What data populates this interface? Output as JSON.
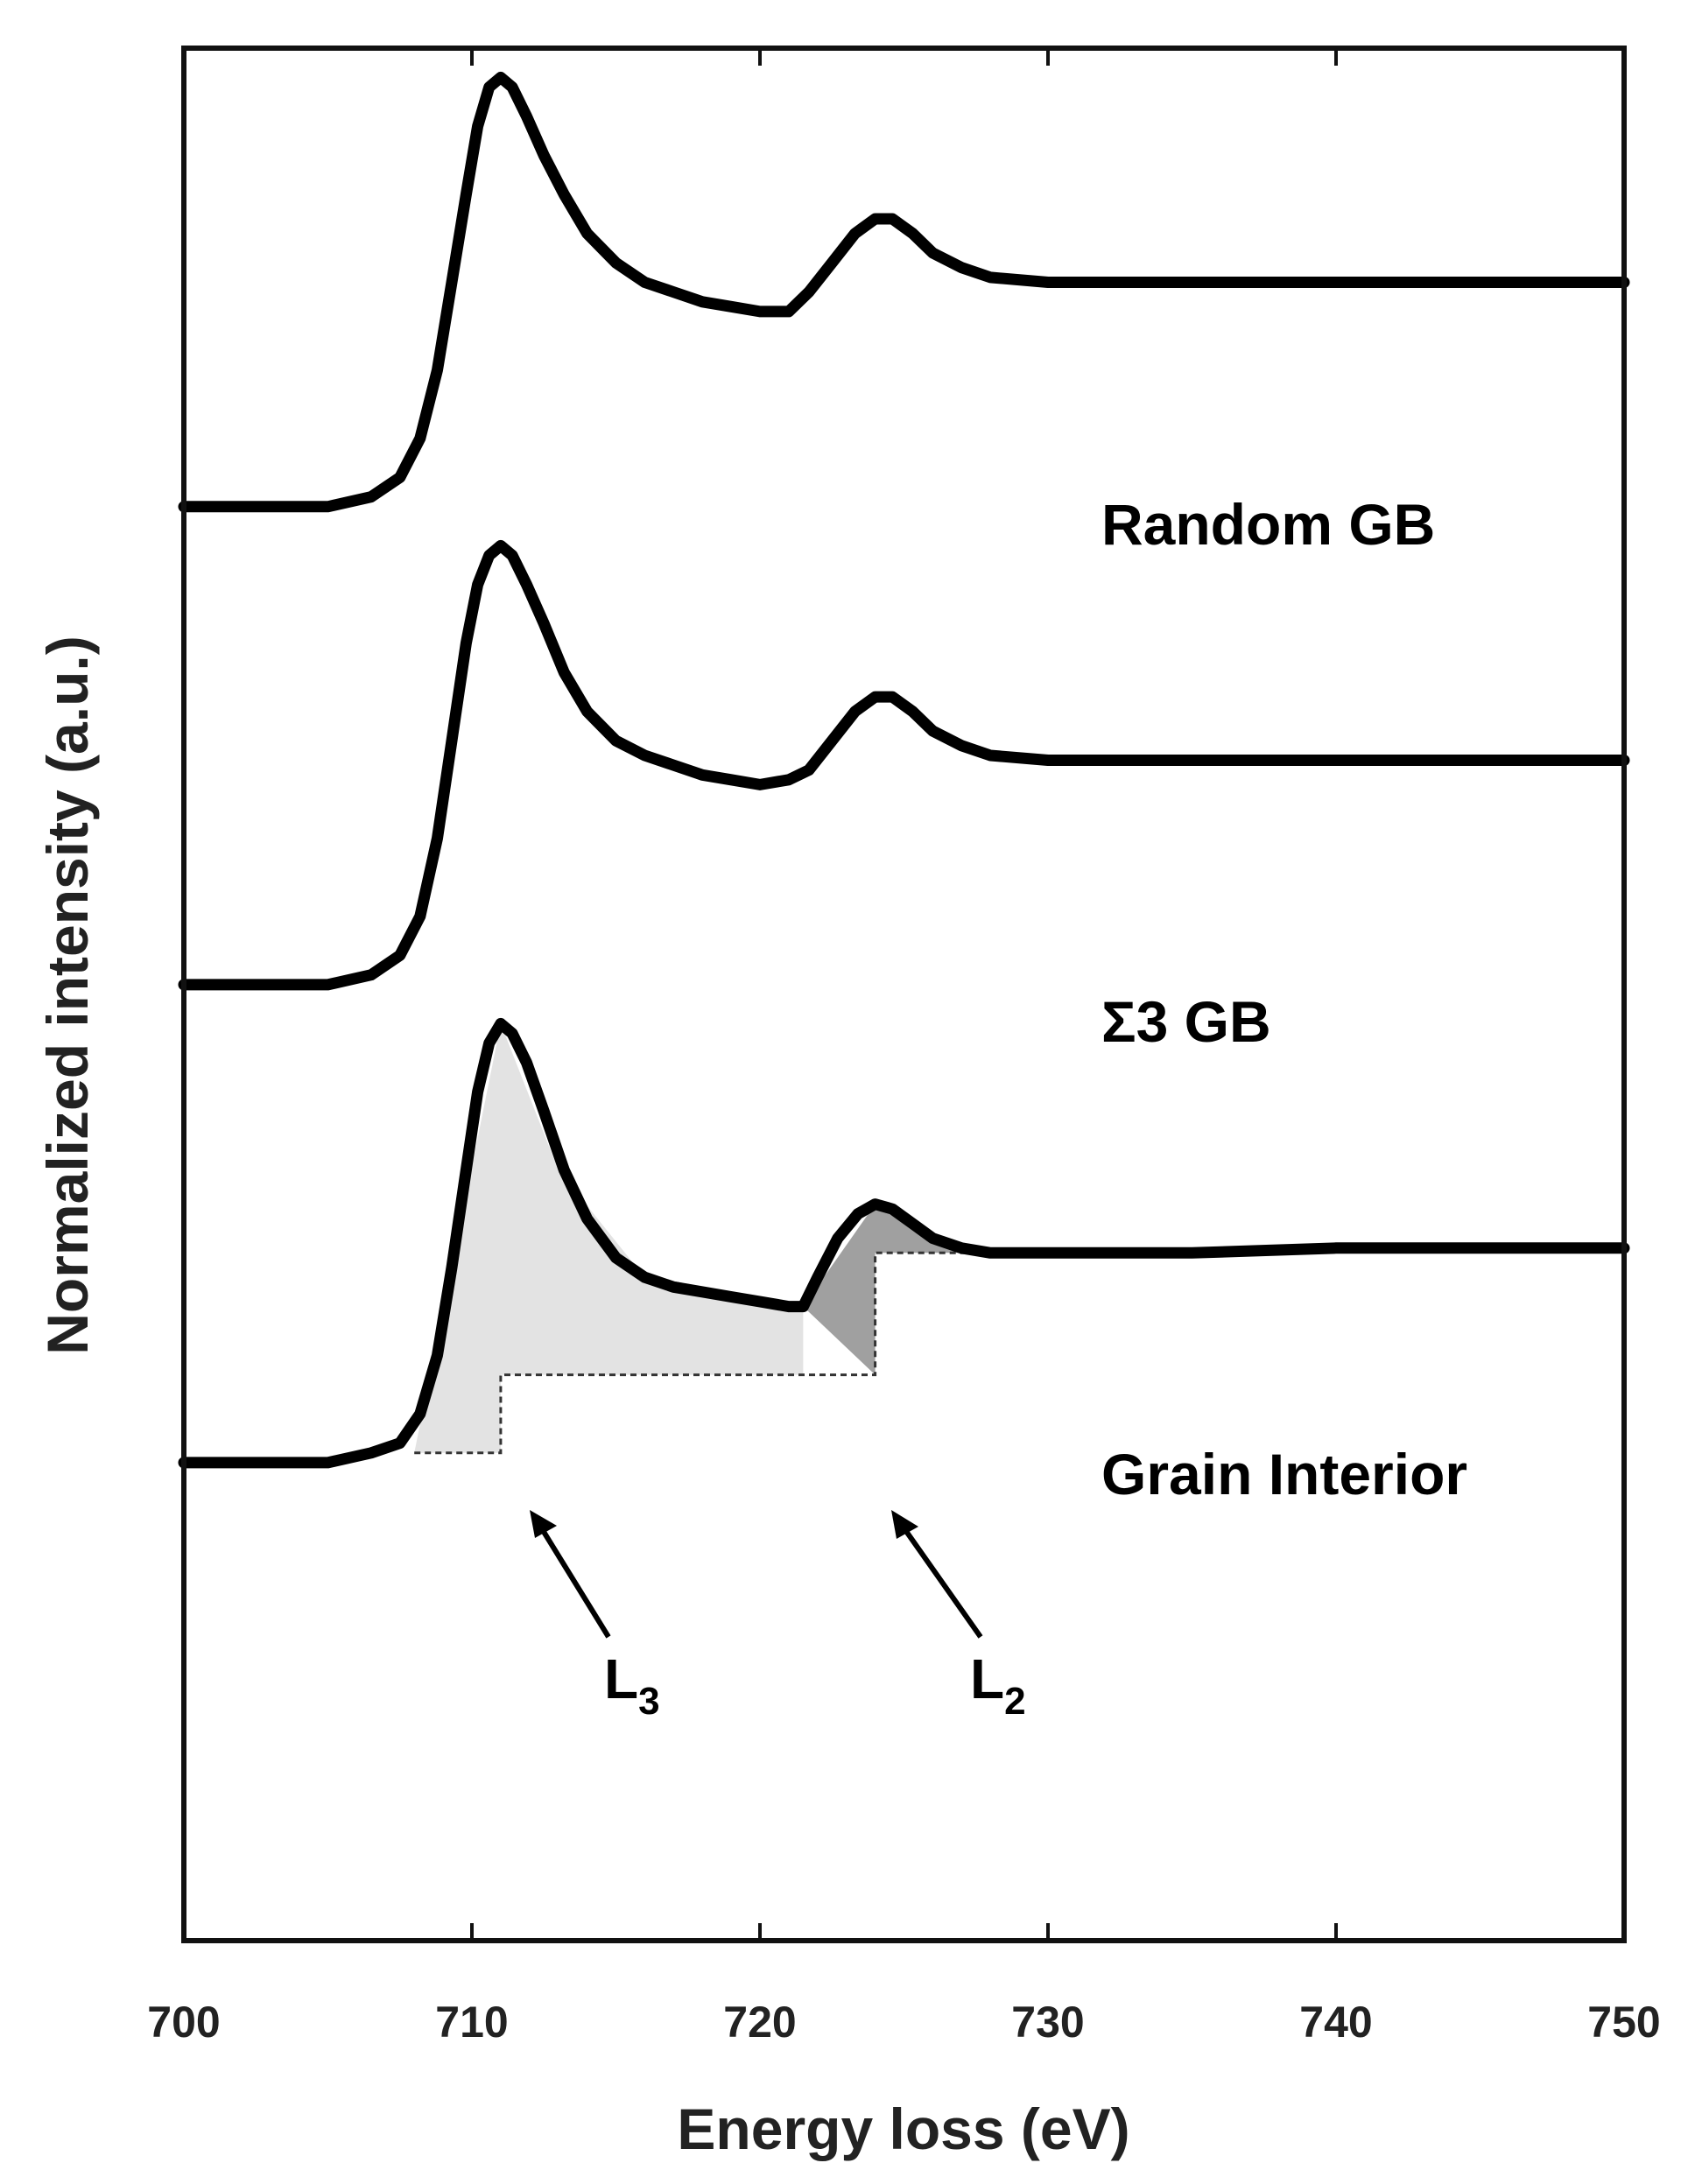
{
  "chart_data": {
    "type": "line",
    "title": "",
    "xlabel": "Energy loss (eV)",
    "ylabel": "Normalized intensity (a.u.)",
    "xlim": [
      700,
      750
    ],
    "x_ticks": [
      "700",
      "710",
      "720",
      "730",
      "740",
      "750"
    ],
    "y_ticks_shown": false,
    "grid": false,
    "legend": "none",
    "series": [
      {
        "name": "Random GB",
        "points": [
          [
            700,
            0.49
          ],
          [
            703,
            0.49
          ],
          [
            705,
            0.49
          ],
          [
            706.5,
            0.5
          ],
          [
            707.5,
            0.52
          ],
          [
            708.2,
            0.56
          ],
          [
            708.8,
            0.63
          ],
          [
            709.3,
            0.72
          ],
          [
            709.8,
            0.81
          ],
          [
            710.2,
            0.88
          ],
          [
            710.6,
            0.92
          ],
          [
            711.0,
            0.93
          ],
          [
            711.4,
            0.92
          ],
          [
            711.9,
            0.89
          ],
          [
            712.5,
            0.85
          ],
          [
            713.2,
            0.81
          ],
          [
            714,
            0.77
          ],
          [
            715,
            0.74
          ],
          [
            716,
            0.72
          ],
          [
            717,
            0.71
          ],
          [
            718,
            0.7
          ],
          [
            719,
            0.695
          ],
          [
            720,
            0.69
          ],
          [
            721,
            0.69
          ],
          [
            721.7,
            0.71
          ],
          [
            722.5,
            0.74
          ],
          [
            723.3,
            0.77
          ],
          [
            724,
            0.785
          ],
          [
            724.6,
            0.785
          ],
          [
            725.3,
            0.77
          ],
          [
            726,
            0.75
          ],
          [
            727,
            0.735
          ],
          [
            728,
            0.725
          ],
          [
            730,
            0.72
          ],
          [
            735,
            0.72
          ],
          [
            740,
            0.72
          ],
          [
            745,
            0.72
          ],
          [
            750,
            0.72
          ]
        ]
      },
      {
        "name": "Σ3 GB",
        "points": [
          [
            700,
            0.0
          ],
          [
            703,
            0.0
          ],
          [
            705,
            0.0
          ],
          [
            706.5,
            0.01
          ],
          [
            707.5,
            0.03
          ],
          [
            708.2,
            0.07
          ],
          [
            708.8,
            0.15
          ],
          [
            709.3,
            0.25
          ],
          [
            709.8,
            0.35
          ],
          [
            710.2,
            0.41
          ],
          [
            710.6,
            0.44
          ],
          [
            711.0,
            0.45
          ],
          [
            711.4,
            0.44
          ],
          [
            711.9,
            0.41
          ],
          [
            712.5,
            0.37
          ],
          [
            713.2,
            0.32
          ],
          [
            714,
            0.28
          ],
          [
            715,
            0.25
          ],
          [
            716,
            0.235
          ],
          [
            717,
            0.225
          ],
          [
            718,
            0.215
          ],
          [
            719,
            0.21
          ],
          [
            720,
            0.205
          ],
          [
            721,
            0.21
          ],
          [
            721.7,
            0.22
          ],
          [
            722.5,
            0.25
          ],
          [
            723.3,
            0.28
          ],
          [
            724,
            0.295
          ],
          [
            724.6,
            0.295
          ],
          [
            725.3,
            0.28
          ],
          [
            726,
            0.26
          ],
          [
            727,
            0.245
          ],
          [
            728,
            0.235
          ],
          [
            730,
            0.23
          ],
          [
            735,
            0.23
          ],
          [
            740,
            0.23
          ],
          [
            745,
            0.23
          ],
          [
            750,
            0.23
          ]
        ]
      },
      {
        "name": "Grain Interior",
        "points": [
          [
            700,
            -0.49
          ],
          [
            703,
            -0.49
          ],
          [
            705,
            -0.49
          ],
          [
            706.5,
            -0.48
          ],
          [
            707.5,
            -0.47
          ],
          [
            708.2,
            -0.44
          ],
          [
            708.8,
            -0.38
          ],
          [
            709.3,
            -0.29
          ],
          [
            709.8,
            -0.19
          ],
          [
            710.2,
            -0.11
          ],
          [
            710.6,
            -0.06
          ],
          [
            711.0,
            -0.04
          ],
          [
            711.4,
            -0.05
          ],
          [
            711.9,
            -0.08
          ],
          [
            712.5,
            -0.13
          ],
          [
            713.2,
            -0.19
          ],
          [
            714,
            -0.24
          ],
          [
            715,
            -0.28
          ],
          [
            716,
            -0.3
          ],
          [
            717,
            -0.31
          ],
          [
            718,
            -0.315
          ],
          [
            719,
            -0.32
          ],
          [
            720,
            -0.325
          ],
          [
            721,
            -0.33
          ],
          [
            721.5,
            -0.33
          ],
          [
            722,
            -0.3
          ],
          [
            722.7,
            -0.26
          ],
          [
            723.4,
            -0.235
          ],
          [
            724,
            -0.225
          ],
          [
            724.6,
            -0.23
          ],
          [
            725.3,
            -0.245
          ],
          [
            726,
            -0.26
          ],
          [
            727,
            -0.27
          ],
          [
            728,
            -0.275
          ],
          [
            730,
            -0.275
          ],
          [
            735,
            -0.275
          ],
          [
            740,
            -0.27
          ],
          [
            745,
            -0.27
          ],
          [
            750,
            -0.27
          ]
        ]
      }
    ],
    "annotations": [
      {
        "label": "L",
        "subscript": "3",
        "target": "L3 shaded area",
        "fill": "#e3e3e3"
      },
      {
        "label": "L",
        "subscript": "2",
        "target": "L2 shaded area",
        "fill": "#a0a0a0"
      }
    ],
    "l3_region": [
      [
        708,
        -0.48
      ],
      [
        711,
        -0.04
      ],
      [
        713,
        -0.19
      ],
      [
        716,
        -0.3
      ],
      [
        721.5,
        -0.33
      ]
    ],
    "l2_region": [
      [
        721.5,
        -0.33
      ],
      [
        724,
        -0.225
      ],
      [
        726,
        -0.26
      ],
      [
        728,
        -0.275
      ]
    ],
    "step_background": [
      [
        708,
        -0.48
      ],
      [
        711,
        -0.48
      ],
      [
        711,
        -0.4
      ],
      [
        721.5,
        -0.4
      ],
      [
        724,
        -0.4
      ],
      [
        724,
        -0.275
      ],
      [
        728,
        -0.275
      ]
    ]
  },
  "colors": {
    "curve": "#000000",
    "l3_fill": "#e3e3e3",
    "l2_fill": "#a0a0a0",
    "axis": "#111111"
  }
}
